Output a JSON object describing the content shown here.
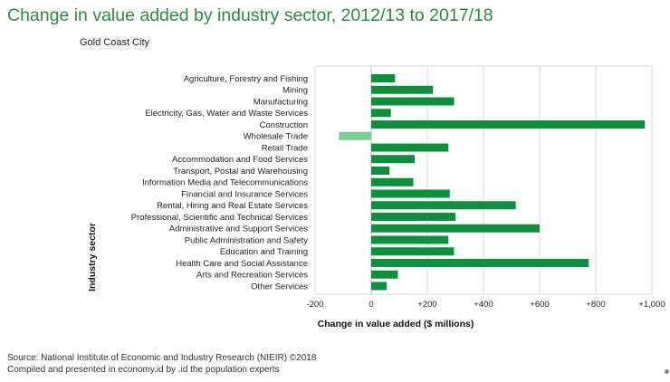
{
  "header": {
    "title": "Change in value added by industry sector, 2012/13 to 2017/18",
    "subtitle": "Gold Coast City"
  },
  "footer": {
    "source": "Source: National Institute of Economic and Industry Research (NIEIR) ©2018",
    "compiled": "Compiled and presented in economy.id by .id the population experts"
  },
  "colors": {
    "positive": "#0f8f3d",
    "negative": "#7dcf9a",
    "title": "#2e8b3e"
  },
  "chart_data": {
    "type": "bar",
    "orientation": "horizontal",
    "categories": [
      "Agriculture, Forestry and Fishing",
      "Mining",
      "Manufacturing",
      "Electricity, Gas, Water and Waste Services",
      "Construction",
      "Wholesale Trade",
      "Retail Trade",
      "Accommodation and Food Services",
      "Transport, Postal and Warehousing",
      "Information Media and Telecommunications",
      "Financial and Insurance Services",
      "Rental, Hiring and Real Estate Services",
      "Professional, Scientific and Technical Services",
      "Administrative and Support Services",
      "Public Administration and Safety",
      "Education and Training",
      "Health Care and Social Assistance",
      "Arts and Recreation Services",
      "Other Services"
    ],
    "values": [
      85,
      220,
      295,
      70,
      975,
      -115,
      275,
      155,
      65,
      150,
      280,
      515,
      300,
      600,
      275,
      295,
      775,
      95,
      55
    ],
    "title": "Change in value added by industry sector, 2012/13 to 2017/18",
    "xlabel": "Change in value added ($ millions)",
    "ylabel": "Industry sector",
    "xlim": [
      -200,
      1000
    ],
    "xticks": [
      -200,
      0,
      200,
      400,
      600,
      800,
      1000
    ],
    "xtick_labels": [
      "-200",
      "0",
      "+200",
      "+400",
      "+600",
      "+800",
      "+1,000"
    ],
    "grid": true
  }
}
